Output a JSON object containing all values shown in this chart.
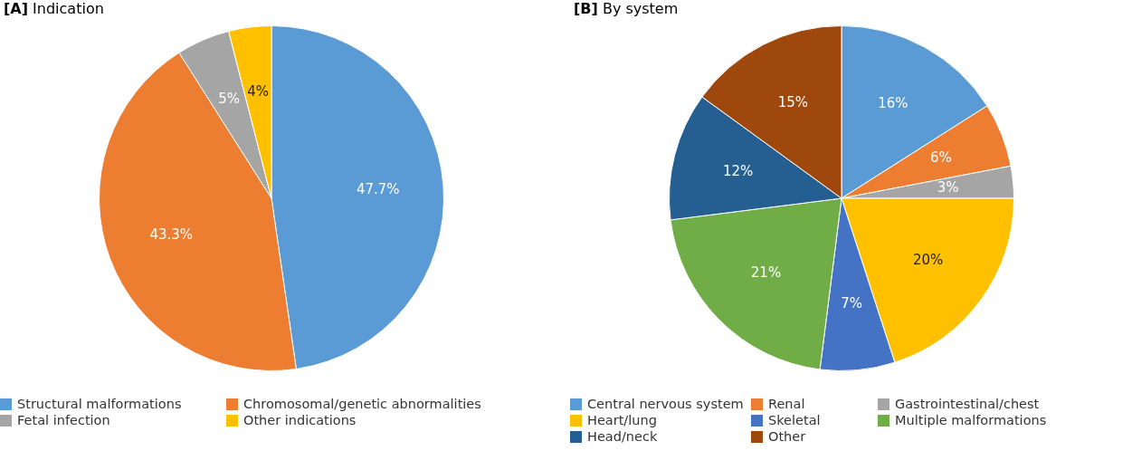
{
  "chart_data": [
    {
      "type": "pie",
      "title": "[A] Indication",
      "categories": [
        "Structural malformations",
        "Chromosomal/genetic abnormalities",
        "Fetal infection",
        "Other indications"
      ],
      "values": [
        47.7,
        43.3,
        5,
        4
      ],
      "colors": [
        "#5b9bd5",
        "#ed7d31",
        "#a5a5a5",
        "#ffc000"
      ],
      "value_labels": [
        "47.7%",
        "43.3%",
        "5%",
        "4%"
      ],
      "legend": "bottom"
    },
    {
      "type": "pie",
      "title": "[B] By system",
      "categories": [
        "Central nervous system",
        "Renal",
        "Gastrointestinal/chest",
        "Heart/lung",
        "Skeletal",
        "Multiple malformations",
        "Head/neck",
        "Other"
      ],
      "values": [
        16,
        6,
        3,
        20,
        7,
        21,
        12,
        15
      ],
      "colors": [
        "#5b9bd5",
        "#ed7d31",
        "#a5a5a5",
        "#ffc000",
        "#4472c4",
        "#70ad47",
        "#255e91",
        "#9e480e"
      ],
      "value_labels": [
        "16%",
        "6%",
        "3%",
        "20%",
        "7%",
        "21%",
        "12%",
        "15%"
      ],
      "legend": "bottom"
    }
  ]
}
